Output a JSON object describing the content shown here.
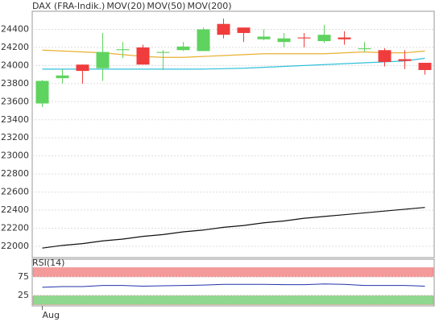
{
  "chart_data": [
    {
      "type": "candlestick",
      "name": "DAX (FRA-Indik.)",
      "name_color": "#e86a6a",
      "up_color": "#5fd35f",
      "down_color": "#f03c3c",
      "categories": [
        "Aug",
        null,
        null,
        null,
        null,
        null,
        null,
        null,
        null,
        null,
        null,
        null,
        null,
        null,
        null,
        null,
        null,
        null,
        null,
        null
      ],
      "open": [
        23580,
        23860,
        24010,
        23970,
        24170,
        24200,
        24140,
        24170,
        24160,
        24460,
        24420,
        24290,
        24260,
        24310,
        24270,
        24310,
        24180,
        24170,
        24070,
        24030
      ],
      "high": [
        23840,
        23960,
        24010,
        24360,
        24260,
        24230,
        24170,
        24260,
        24420,
        24520,
        24420,
        24400,
        24360,
        24360,
        24450,
        24380,
        24260,
        24190,
        24170,
        24030
      ],
      "low": [
        23540,
        23800,
        23800,
        23830,
        24080,
        24010,
        23950,
        24160,
        24160,
        24300,
        24260,
        24280,
        24200,
        24200,
        24250,
        24230,
        24150,
        23990,
        23960,
        23900
      ],
      "close": [
        23830,
        23890,
        23940,
        24150,
        24180,
        24010,
        24150,
        24210,
        24400,
        24340,
        24360,
        24320,
        24300,
        24300,
        24340,
        24290,
        24190,
        24040,
        24050,
        23950
      ],
      "series": [
        {
          "name": "MOV(20)",
          "color": "#e8b030",
          "values": [
            24170,
            24160,
            24150,
            24140,
            24120,
            24100,
            24090,
            24090,
            24100,
            24110,
            24120,
            24130,
            24130,
            24130,
            24130,
            24140,
            24150,
            24140,
            24140,
            24160
          ]
        },
        {
          "name": "MOV(50)",
          "color": "#30c0d8",
          "values": [
            23960,
            23960,
            23960,
            23960,
            23960,
            23960,
            23960,
            23960,
            23960,
            23965,
            23970,
            23980,
            23990,
            24000,
            24010,
            24020,
            24030,
            24040,
            24050,
            24080
          ]
        },
        {
          "name": "MOV(200)",
          "color": "#111111",
          "values": [
            21980,
            22010,
            22030,
            22060,
            22080,
            22110,
            22130,
            22160,
            22180,
            22210,
            22230,
            22260,
            22280,
            22310,
            22330,
            22350,
            22370,
            22390,
            22410,
            22430
          ]
        }
      ],
      "ylim": [
        21875,
        24600
      ],
      "yticks": [
        22000,
        22200,
        22400,
        22600,
        22800,
        23000,
        23200,
        23400,
        23600,
        23800,
        24000,
        24200,
        24400
      ],
      "grid": true
    },
    {
      "type": "line",
      "title": "RSI(14)",
      "color": "#2233aa",
      "values": [
        47,
        49,
        49,
        52,
        52,
        50,
        51,
        52,
        53,
        55,
        55,
        55,
        54,
        54,
        56,
        55,
        52,
        52,
        52,
        50
      ],
      "zones": [
        {
          "from": 75,
          "to": 100,
          "color": "#f49a9a"
        },
        {
          "from": 0,
          "to": 25,
          "color": "#8fd88f"
        }
      ],
      "ylim": [
        0,
        100
      ],
      "yticks": [
        25,
        75
      ],
      "grid": true
    }
  ]
}
